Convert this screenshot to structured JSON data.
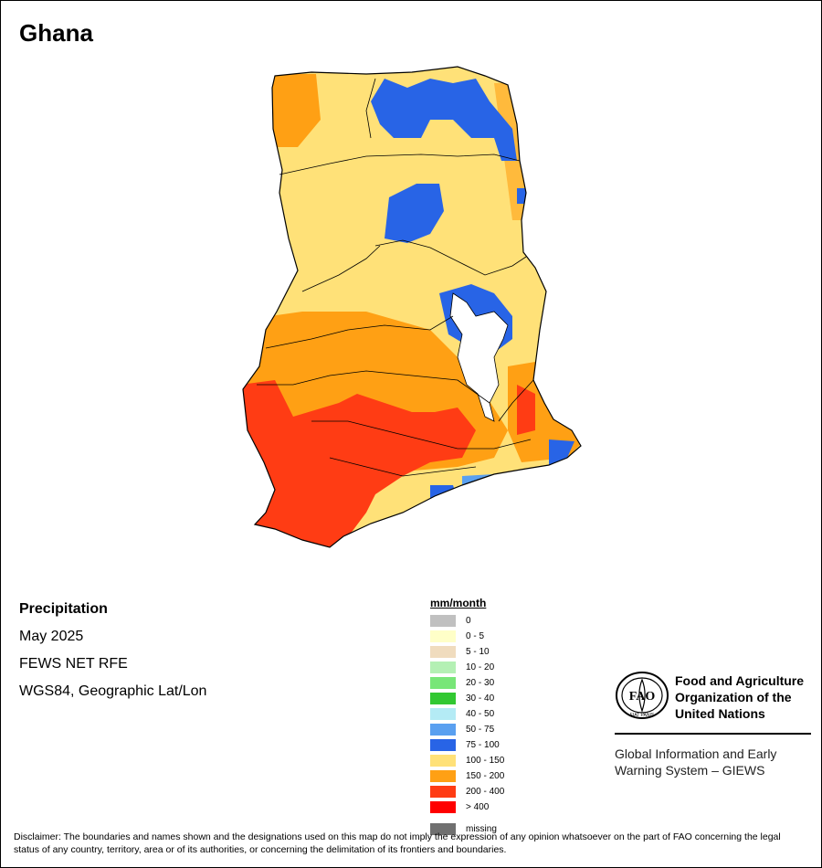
{
  "title": "Ghana",
  "info": {
    "heading": "Precipitation",
    "period": "May 2025",
    "source": "FEWS NET RFE",
    "projection": "WGS84, Geographic Lat/Lon"
  },
  "legend": {
    "title": "mm/month",
    "classes": [
      {
        "label": "0",
        "color": "#c0c0c0"
      },
      {
        "label": "0 - 5",
        "color": "#ffffc8"
      },
      {
        "label": "5 - 10",
        "color": "#f0dcbe"
      },
      {
        "label": "10 - 20",
        "color": "#b4f0b4"
      },
      {
        "label": "20 - 30",
        "color": "#78e678"
      },
      {
        "label": "30 - 40",
        "color": "#32c832"
      },
      {
        "label": "40 - 50",
        "color": "#b4ebf5"
      },
      {
        "label": "50 - 75",
        "color": "#5aa0f0"
      },
      {
        "label": "75 - 100",
        "color": "#2864e6"
      },
      {
        "label": "100 - 150",
        "color": "#ffe178"
      },
      {
        "label": "150 - 200",
        "color": "#ffa014"
      },
      {
        "label": "200 - 400",
        "color": "#ff3c14"
      },
      {
        "label": "> 400",
        "color": "#ff0000"
      }
    ],
    "missing": {
      "label": "missing",
      "color": "#707070"
    }
  },
  "fao": {
    "logo_text": "FAO",
    "logo_motto": "FIAT PANIS",
    "name_line1": "Food and Agriculture",
    "name_line2": "Organization of the",
    "name_line3": "United Nations"
  },
  "giews": {
    "line1": "Global Information and Early",
    "line2": "Warning System – GIEWS"
  },
  "disclaimer": "Disclaimer: The boundaries and names shown and the designations used on this map do not imply the expression of any opinion whatsoever on the part of FAO concerning the legal status of any country, territory, area or of its authorities, or concerning the delimitation of its frontiers and boundaries."
}
